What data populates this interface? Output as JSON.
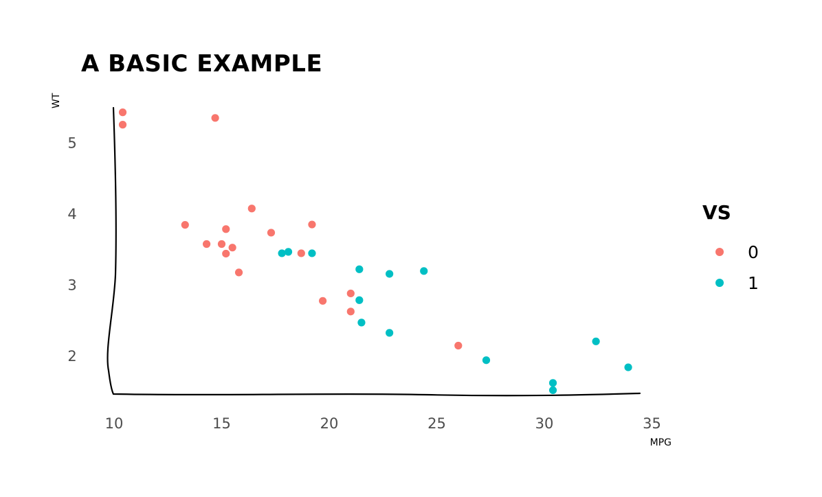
{
  "chart_data": {
    "type": "scatter",
    "title": "A BASIC EXAMPLE",
    "xlabel": "MPG",
    "ylabel": "WT",
    "xlim": [
      10,
      34.5
    ],
    "ylim": [
      1.45,
      5.5
    ],
    "xticks": [
      10,
      15,
      20,
      25,
      30,
      35
    ],
    "xtick_labels": [
      "10",
      "15",
      "20",
      "25",
      "30",
      "35"
    ],
    "yticks": [
      2,
      3,
      4,
      5
    ],
    "ytick_labels": [
      "2",
      "3",
      "4",
      "5"
    ],
    "grid": false,
    "legend": {
      "title": "VS",
      "position": "right"
    },
    "series": [
      {
        "name": "0",
        "color": "#F8766D",
        "points": [
          [
            21.0,
            2.62
          ],
          [
            21.0,
            2.875
          ],
          [
            18.7,
            3.44
          ],
          [
            14.3,
            3.57
          ],
          [
            16.4,
            4.07
          ],
          [
            17.3,
            3.73
          ],
          [
            15.2,
            3.78
          ],
          [
            10.4,
            5.25
          ],
          [
            10.4,
            5.424
          ],
          [
            14.7,
            5.345
          ],
          [
            15.5,
            3.52
          ],
          [
            15.2,
            3.435
          ],
          [
            13.3,
            3.84
          ],
          [
            19.2,
            3.845
          ],
          [
            26.0,
            2.14
          ],
          [
            15.8,
            3.17
          ],
          [
            19.7,
            2.77
          ],
          [
            15.0,
            3.57
          ]
        ]
      },
      {
        "name": "1",
        "color": "#00BFC4",
        "points": [
          [
            22.8,
            2.32
          ],
          [
            21.4,
            3.215
          ],
          [
            24.4,
            3.19
          ],
          [
            22.8,
            3.15
          ],
          [
            19.2,
            3.44
          ],
          [
            17.8,
            3.44
          ],
          [
            32.4,
            2.2
          ],
          [
            30.4,
            1.615
          ],
          [
            33.9,
            1.835
          ],
          [
            21.5,
            2.465
          ],
          [
            27.3,
            1.935
          ],
          [
            30.4,
            1.513
          ],
          [
            21.4,
            2.78
          ],
          [
            18.1,
            3.46
          ]
        ]
      }
    ]
  }
}
